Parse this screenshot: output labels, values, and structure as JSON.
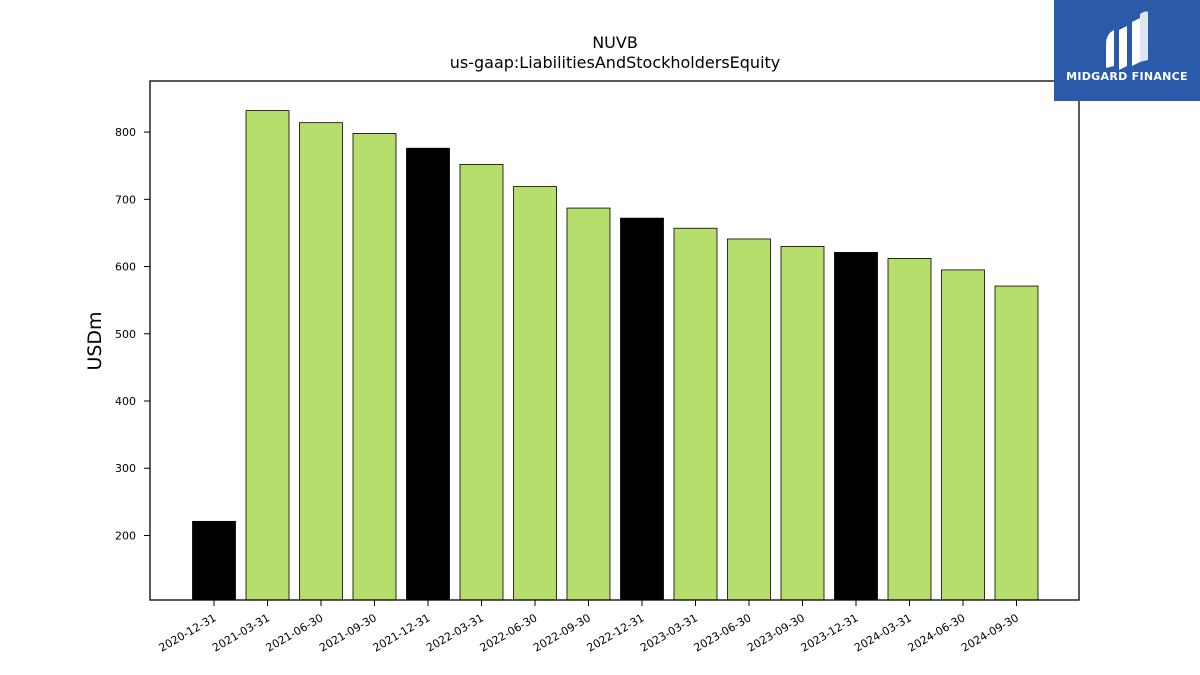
{
  "chart_data": {
    "type": "bar",
    "title": "NUVB",
    "subtitle": "us-gaap:LiabilitiesAndStockholdersEquity",
    "xlabel": "",
    "ylabel": "USDm",
    "categories": [
      "2020-12-31",
      "2021-03-31",
      "2021-06-30",
      "2021-09-30",
      "2021-12-31",
      "2022-03-31",
      "2022-06-30",
      "2022-09-30",
      "2022-12-31",
      "2023-03-31",
      "2023-06-30",
      "2023-09-30",
      "2023-12-31",
      "2024-03-31",
      "2024-06-30",
      "2024-09-30"
    ],
    "values": [
      221,
      832,
      814,
      798,
      776,
      752,
      719,
      687,
      672,
      657,
      641,
      630,
      621,
      612,
      595,
      571
    ],
    "bar_colors": [
      "#000000",
      "#b5de6c",
      "#b5de6c",
      "#b5de6c",
      "#000000",
      "#b5de6c",
      "#b5de6c",
      "#b5de6c",
      "#000000",
      "#b5de6c",
      "#b5de6c",
      "#b5de6c",
      "#000000",
      "#b5de6c",
      "#b5de6c",
      "#b5de6c"
    ],
    "yticks": [
      200,
      300,
      400,
      500,
      600,
      700,
      800
    ],
    "ylim": [
      104,
      876
    ],
    "grid": false,
    "legend": "none"
  },
  "logo": {
    "text": "MIDGARD FINANCE",
    "background": "#2b5aab"
  },
  "colors": {
    "accent_bar": "#b5de6c",
    "year_end_bar": "#000000"
  }
}
